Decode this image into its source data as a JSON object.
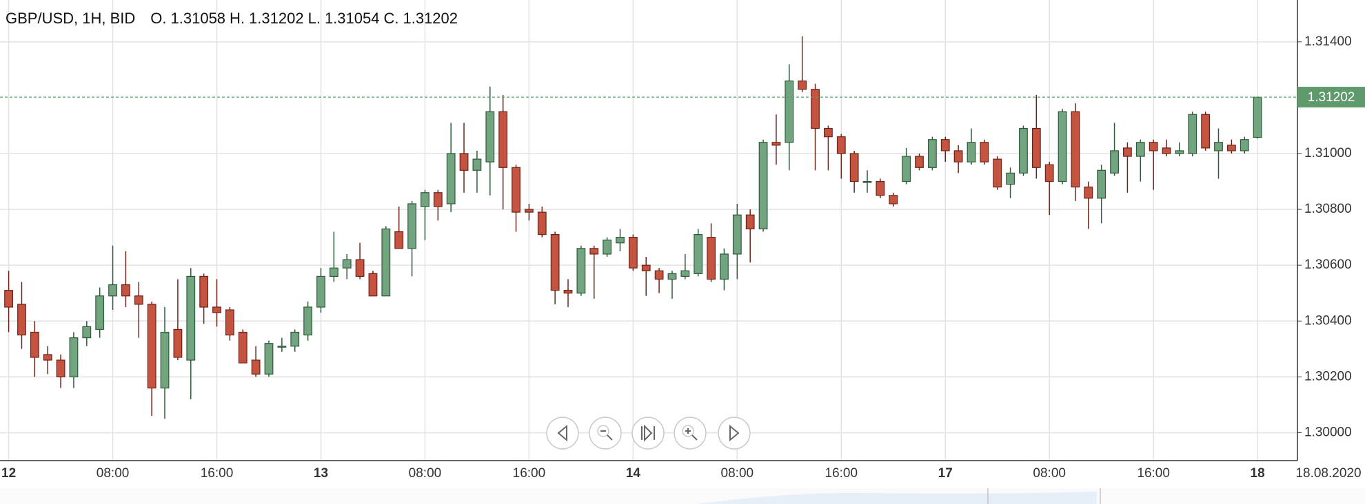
{
  "chart_data": {
    "type": "candlestick",
    "title": "GBP/USD, 1H, BID",
    "ohlc_labels": [
      "O.",
      "H.",
      "L.",
      "C."
    ],
    "date_label": "18.08.2020",
    "categories": [
      "12",
      null,
      null,
      null,
      null,
      null,
      null,
      null,
      "08:00",
      null,
      null,
      null,
      null,
      null,
      null,
      null,
      "16:00",
      null,
      null,
      null,
      null,
      null,
      null,
      null,
      "13",
      null,
      null,
      null,
      null,
      null,
      null,
      null,
      "08:00",
      null,
      null,
      null,
      null,
      null,
      null,
      null,
      "16:00",
      null,
      null,
      null,
      null,
      null,
      null,
      null,
      "14",
      null,
      null,
      null,
      null,
      null,
      null,
      null,
      "08:00",
      null,
      null,
      null,
      null,
      null,
      null,
      null,
      "16:00",
      null,
      null,
      null,
      null,
      null,
      null,
      null,
      "17",
      null,
      null,
      null,
      null,
      null,
      null,
      null,
      "08:00",
      null,
      null,
      null,
      null,
      null,
      null,
      null,
      "16:00",
      null,
      null,
      null,
      null,
      null,
      null,
      null,
      "18"
    ],
    "open": [
      1.3051,
      1.3046,
      1.3036,
      1.3028,
      1.3026,
      1.302,
      1.3034,
      1.3037,
      1.3049,
      1.3053,
      1.3049,
      1.3046,
      1.3016,
      1.3037,
      1.3026,
      1.3056,
      1.3045,
      1.3044,
      1.3036,
      1.3026,
      1.3021,
      1.3031,
      1.3031,
      1.3035,
      1.3045,
      1.3056,
      1.3059,
      1.3062,
      1.3057,
      1.3049,
      1.3072,
      1.3066,
      1.3081,
      1.3086,
      1.3082,
      1.31,
      1.3094,
      1.3097,
      1.3115,
      1.3095,
      1.308,
      1.3079,
      1.3071,
      1.3051,
      1.305,
      1.3066,
      1.3064,
      1.3068,
      1.307,
      1.306,
      1.3058,
      1.3055,
      1.3056,
      1.3057,
      1.307,
      1.3055,
      1.3064,
      1.3078,
      1.3073,
      1.3104,
      1.3104,
      1.3126,
      1.3123,
      1.3109,
      1.3106,
      1.31,
      1.309,
      1.309,
      1.3085,
      1.309,
      1.3099,
      1.3095,
      1.3105,
      1.3101,
      1.3097,
      1.3104,
      1.3098,
      1.3089,
      1.3093,
      1.3109,
      1.3096,
      1.309,
      1.3115,
      1.3088,
      1.3084,
      1.3093,
      1.3102,
      1.3099,
      1.3104,
      1.3102,
      1.31,
      1.31,
      1.3114,
      1.3101,
      1.3103,
      1.3101,
      1.31058
    ],
    "high": [
      1.3058,
      1.3054,
      1.304,
      1.3031,
      1.3028,
      1.3036,
      1.304,
      1.3052,
      1.3067,
      1.3065,
      1.3054,
      1.3047,
      1.3045,
      1.3055,
      1.3059,
      1.3057,
      1.3055,
      1.3045,
      1.3037,
      1.3031,
      1.3033,
      1.3034,
      1.3037,
      1.3047,
      1.3059,
      1.3072,
      1.3064,
      1.3068,
      1.3058,
      1.3074,
      1.3081,
      1.3083,
      1.3087,
      1.3087,
      1.3111,
      1.3111,
      1.3101,
      1.3124,
      1.3121,
      1.3096,
      1.3082,
      1.3081,
      1.3072,
      1.3055,
      1.3067,
      1.3067,
      1.307,
      1.3073,
      1.3071,
      1.3063,
      1.3059,
      1.3058,
      1.3064,
      1.3073,
      1.3075,
      1.3066,
      1.3082,
      1.308,
      1.3105,
      1.3114,
      1.3132,
      1.3142,
      1.3125,
      1.311,
      1.3107,
      1.3101,
      1.3094,
      1.3091,
      1.3086,
      1.3102,
      1.31,
      1.3106,
      1.3106,
      1.3103,
      1.3109,
      1.3105,
      1.3099,
      1.3095,
      1.311,
      1.3121,
      1.3097,
      1.3116,
      1.3118,
      1.309,
      1.3096,
      1.3111,
      1.3104,
      1.3105,
      1.3105,
      1.3105,
      1.3104,
      1.3115,
      1.3115,
      1.3109,
      1.3105,
      1.3106,
      1.31202
    ],
    "low": [
      1.3036,
      1.303,
      1.302,
      1.3021,
      1.3016,
      1.3016,
      1.3031,
      1.3034,
      1.3044,
      1.3045,
      1.3034,
      1.3006,
      1.3005,
      1.3026,
      1.3012,
      1.3039,
      1.3038,
      1.3033,
      1.3025,
      1.302,
      1.302,
      1.3029,
      1.3029,
      1.3033,
      1.3043,
      1.3054,
      1.3055,
      1.3055,
      1.3049,
      1.3049,
      1.3066,
      1.3056,
      1.3069,
      1.3076,
      1.3079,
      1.3086,
      1.3086,
      1.3085,
      1.308,
      1.3072,
      1.3076,
      1.307,
      1.3046,
      1.3045,
      1.3049,
      1.3048,
      1.3063,
      1.3065,
      1.3058,
      1.3049,
      1.305,
      1.3048,
      1.3055,
      1.3056,
      1.3054,
      1.3051,
      1.3055,
      1.3061,
      1.3072,
      1.3096,
      1.3094,
      1.3122,
      1.3094,
      1.3094,
      1.3091,
      1.3086,
      1.3086,
      1.3084,
      1.3081,
      1.3089,
      1.3094,
      1.3094,
      1.3097,
      1.3093,
      1.3096,
      1.3096,
      1.3087,
      1.3084,
      1.3092,
      1.3091,
      1.3078,
      1.3089,
      1.3083,
      1.3073,
      1.3075,
      1.3092,
      1.3086,
      1.309,
      1.3087,
      1.3099,
      1.3099,
      1.3099,
      1.3101,
      1.3091,
      1.31,
      1.31,
      1.31054
    ],
    "close": [
      1.3045,
      1.3035,
      1.3027,
      1.3026,
      1.302,
      1.3034,
      1.3038,
      1.3049,
      1.3053,
      1.3049,
      1.3046,
      1.3016,
      1.3036,
      1.3027,
      1.3056,
      1.3045,
      1.3043,
      1.3035,
      1.3025,
      1.3021,
      1.3032,
      1.3031,
      1.3036,
      1.3045,
      1.3056,
      1.3059,
      1.3062,
      1.3056,
      1.3049,
      1.3073,
      1.3066,
      1.3082,
      1.3086,
      1.3081,
      1.31,
      1.3094,
      1.3098,
      1.3115,
      1.3095,
      1.3079,
      1.3079,
      1.3071,
      1.3051,
      1.305,
      1.3066,
      1.3064,
      1.3069,
      1.307,
      1.3059,
      1.3058,
      1.3055,
      1.3057,
      1.3058,
      1.3071,
      1.3055,
      1.3064,
      1.3078,
      1.3073,
      1.3104,
      1.3103,
      1.3126,
      1.3123,
      1.3109,
      1.3106,
      1.31,
      1.309,
      1.309,
      1.3085,
      1.3082,
      1.3099,
      1.3095,
      1.3105,
      1.3101,
      1.3097,
      1.3104,
      1.3097,
      1.3088,
      1.3093,
      1.3109,
      1.3095,
      1.309,
      1.3115,
      1.3088,
      1.3084,
      1.3094,
      1.3101,
      1.3099,
      1.3104,
      1.3101,
      1.31,
      1.3101,
      1.3114,
      1.3102,
      1.3104,
      1.3101,
      1.3105,
      1.31202
    ],
    "up_color": "#72a47f",
    "down_color": "#c4533f",
    "price_line_color": "#5e9a6b",
    "ylim": [
      1.299,
      1.3155
    ],
    "yticks": [
      {
        "value": 1.3,
        "label": "1.30000"
      },
      {
        "value": 1.302,
        "label": "1.30200"
      },
      {
        "value": 1.304,
        "label": "1.30400"
      },
      {
        "value": 1.306,
        "label": "1.30600"
      },
      {
        "value": 1.308,
        "label": "1.30800"
      },
      {
        "value": 1.31,
        "label": "1.31000"
      },
      {
        "value": 1.314,
        "label": "1.31400"
      }
    ],
    "grid": true
  }
}
